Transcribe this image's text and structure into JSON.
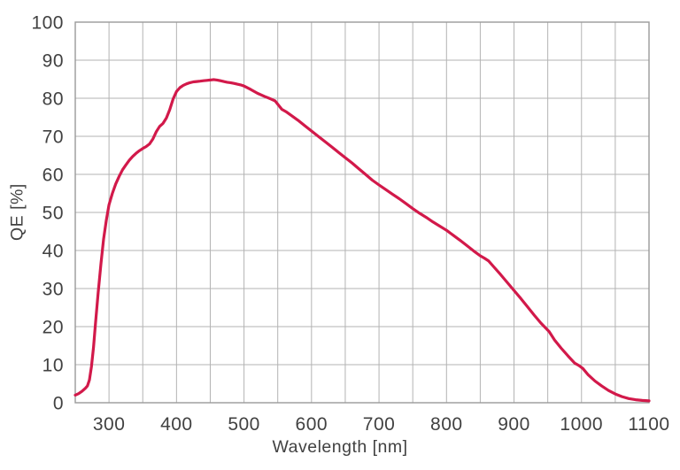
{
  "chart_data": {
    "type": "line",
    "title": "",
    "xlabel": "Wavelength [nm]",
    "ylabel": "QE [%]",
    "xlim": [
      250,
      1100
    ],
    "ylim": [
      0,
      100
    ],
    "x_grid_step": 50,
    "y_grid_step": 10,
    "x_tick_labels": [
      300,
      400,
      500,
      600,
      700,
      800,
      900,
      1000,
      1100
    ],
    "y_tick_labels": [
      0,
      10,
      20,
      30,
      40,
      50,
      60,
      70,
      80,
      90,
      100
    ],
    "grid": "on",
    "legend": "none",
    "line_color": "#d2194a",
    "grid_color": "#b3b3b3",
    "axis_color": "#9a9a9a",
    "text_color": "#414141",
    "background_color": "#ffffff",
    "series": [
      {
        "name": "QE",
        "x": [
          250,
          255,
          260,
          265,
          268,
          271,
          274,
          277,
          280,
          284,
          288,
          292,
          296,
          300,
          305,
          310,
          315,
          320,
          325,
          330,
          335,
          340,
          345,
          350,
          355,
          360,
          365,
          370,
          375,
          380,
          385,
          390,
          395,
          400,
          405,
          410,
          415,
          420,
          425,
          430,
          435,
          440,
          445,
          450,
          455,
          460,
          465,
          470,
          475,
          480,
          485,
          490,
          495,
          500,
          510,
          520,
          530,
          540,
          546,
          551,
          556,
          562,
          570,
          580,
          590,
          600,
          610,
          620,
          630,
          640,
          650,
          660,
          670,
          680,
          690,
          700,
          710,
          720,
          730,
          740,
          750,
          760,
          770,
          780,
          790,
          800,
          810,
          820,
          830,
          840,
          850,
          856,
          862,
          870,
          880,
          890,
          900,
          910,
          920,
          930,
          940,
          946,
          952,
          960,
          970,
          980,
          990,
          996,
          1002,
          1010,
          1020,
          1030,
          1040,
          1050,
          1060,
          1070,
          1080,
          1090,
          1100
        ],
        "y": [
          2.0,
          2.4,
          3.0,
          3.8,
          4.4,
          6.0,
          9.5,
          14.5,
          21.0,
          29.0,
          36.5,
          43.0,
          48.0,
          52.0,
          55.0,
          57.5,
          59.5,
          61.2,
          62.5,
          63.7,
          64.7,
          65.5,
          66.2,
          66.8,
          67.3,
          68.0,
          69.3,
          71.2,
          72.6,
          73.4,
          74.8,
          77.0,
          79.8,
          81.8,
          82.8,
          83.4,
          83.8,
          84.1,
          84.3,
          84.4,
          84.5,
          84.6,
          84.7,
          84.8,
          84.9,
          84.8,
          84.6,
          84.4,
          84.2,
          84.1,
          83.9,
          83.7,
          83.5,
          83.2,
          82.3,
          81.3,
          80.5,
          79.8,
          79.3,
          78.2,
          77.1,
          76.5,
          75.5,
          74.2,
          72.8,
          71.4,
          70.0,
          68.6,
          67.2,
          65.8,
          64.4,
          63.0,
          61.5,
          60.0,
          58.5,
          57.2,
          56.0,
          54.8,
          53.6,
          52.3,
          51.0,
          49.8,
          48.7,
          47.5,
          46.4,
          45.3,
          44.0,
          42.7,
          41.3,
          39.9,
          38.6,
          38.0,
          37.3,
          35.7,
          33.7,
          31.6,
          29.5,
          27.4,
          25.2,
          23.0,
          20.9,
          19.8,
          18.7,
          16.5,
          14.3,
          12.3,
          10.4,
          9.8,
          9.0,
          7.3,
          5.7,
          4.4,
          3.2,
          2.3,
          1.6,
          1.1,
          0.8,
          0.6,
          0.5
        ]
      }
    ]
  }
}
